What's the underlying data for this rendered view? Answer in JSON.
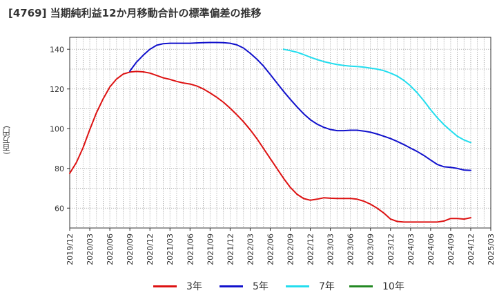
{
  "chart_data": {
    "type": "line",
    "title": "[4769]  当期純利益12か月移動合計の標準偏差の推移",
    "ylabel": "(百万円)",
    "xlabel": "",
    "ylim": [
      50,
      146
    ],
    "yticks": [
      60,
      80,
      100,
      120,
      140
    ],
    "x_ticks": [
      "2019/12",
      "2020/03",
      "2020/06",
      "2020/09",
      "2020/12",
      "2021/03",
      "2021/06",
      "2021/09",
      "2021/12",
      "2022/03",
      "2022/06",
      "2022/09",
      "2022/12",
      "2023/03",
      "2023/06",
      "2023/09",
      "2023/12",
      "2024/03",
      "2024/06",
      "2024/09",
      "2024/12",
      "2025/03"
    ],
    "grid": true,
    "legend_position": "bottom",
    "series": [
      {
        "name": "3年",
        "color": "#dd1111",
        "x": [
          "2019/12",
          "2020/01",
          "2020/02",
          "2020/03",
          "2020/04",
          "2020/05",
          "2020/06",
          "2020/07",
          "2020/08",
          "2020/09",
          "2020/10",
          "2020/11",
          "2020/12",
          "2021/01",
          "2021/02",
          "2021/03",
          "2021/04",
          "2021/05",
          "2021/06",
          "2021/07",
          "2021/08",
          "2021/09",
          "2021/10",
          "2021/11",
          "2021/12",
          "2022/01",
          "2022/02",
          "2022/03",
          "2022/04",
          "2022/05",
          "2022/06",
          "2022/07",
          "2022/08",
          "2022/09",
          "2022/10",
          "2022/11",
          "2022/12",
          "2023/01",
          "2023/02",
          "2023/03",
          "2023/04",
          "2023/05",
          "2023/06",
          "2023/07",
          "2023/08",
          "2023/09",
          "2023/10",
          "2023/11",
          "2023/12",
          "2024/01",
          "2024/02",
          "2024/03",
          "2024/04",
          "2024/05",
          "2024/06",
          "2024/07",
          "2024/08",
          "2024/09",
          "2024/10",
          "2024/11",
          "2024/12"
        ],
        "values": [
          77.5,
          83,
          90.5,
          99.5,
          108,
          115,
          121,
          125,
          127.5,
          128.5,
          128.8,
          128.6,
          128,
          126.8,
          125.6,
          124.8,
          123.8,
          123,
          122.5,
          121.5,
          120,
          118,
          115.8,
          113.3,
          110.3,
          107,
          103.5,
          99.5,
          95,
          90,
          85,
          80,
          75,
          70.5,
          67,
          64.8,
          64,
          64.5,
          65.2,
          65,
          64.9,
          64.9,
          64.9,
          64.5,
          63.5,
          62,
          60,
          57.5,
          54.5,
          53.3,
          53,
          53,
          53,
          53,
          53,
          53,
          53.5,
          54.8,
          54.8,
          54.5,
          55.2
        ]
      },
      {
        "name": "5年",
        "color": "#1111cc",
        "x": [
          "2020/09",
          "2020/10",
          "2020/11",
          "2020/12",
          "2021/01",
          "2021/02",
          "2021/03",
          "2021/04",
          "2021/05",
          "2021/06",
          "2021/07",
          "2021/08",
          "2021/09",
          "2021/10",
          "2021/11",
          "2021/12",
          "2022/01",
          "2022/02",
          "2022/03",
          "2022/04",
          "2022/05",
          "2022/06",
          "2022/07",
          "2022/08",
          "2022/09",
          "2022/10",
          "2022/11",
          "2022/12",
          "2023/01",
          "2023/02",
          "2023/03",
          "2023/04",
          "2023/05",
          "2023/06",
          "2023/07",
          "2023/08",
          "2023/09",
          "2023/10",
          "2023/11",
          "2023/12",
          "2024/01",
          "2024/02",
          "2024/03",
          "2024/04",
          "2024/05",
          "2024/06",
          "2024/07",
          "2024/08",
          "2024/09",
          "2024/10",
          "2024/11",
          "2024/12"
        ],
        "values": [
          129,
          133.5,
          137,
          140,
          142,
          142.8,
          143,
          143,
          143,
          143,
          143.2,
          143.3,
          143.4,
          143.4,
          143.3,
          143,
          142.2,
          140.6,
          138,
          135,
          131.5,
          127.3,
          123,
          118.8,
          114.8,
          111,
          107.5,
          104.5,
          102.3,
          100.7,
          99.6,
          99,
          99,
          99.2,
          99.2,
          98.8,
          98.2,
          97.3,
          96.2,
          95,
          93.6,
          92,
          90.2,
          88.5,
          86.5,
          84.2,
          82,
          80.8,
          80.5,
          80,
          79.2,
          79
        ]
      },
      {
        "name": "7年",
        "color": "#22ddee",
        "x": [
          "2022/08",
          "2022/09",
          "2022/10",
          "2022/11",
          "2022/12",
          "2023/01",
          "2023/02",
          "2023/03",
          "2023/04",
          "2023/05",
          "2023/06",
          "2023/07",
          "2023/08",
          "2023/09",
          "2023/10",
          "2023/11",
          "2023/12",
          "2024/01",
          "2024/02",
          "2024/03",
          "2024/04",
          "2024/05",
          "2024/06",
          "2024/07",
          "2024/08",
          "2024/09",
          "2024/10",
          "2024/11",
          "2024/12"
        ],
        "values": [
          140,
          139.3,
          138.5,
          137.3,
          136,
          134.8,
          133.8,
          133,
          132.3,
          131.8,
          131.5,
          131.3,
          131,
          130.5,
          130,
          129.2,
          128,
          126.5,
          124.3,
          121.5,
          118,
          114,
          109.5,
          105.5,
          102,
          99,
          96.2,
          94.3,
          93
        ]
      },
      {
        "name": "10年",
        "color": "#228822",
        "x": [],
        "values": []
      }
    ]
  }
}
